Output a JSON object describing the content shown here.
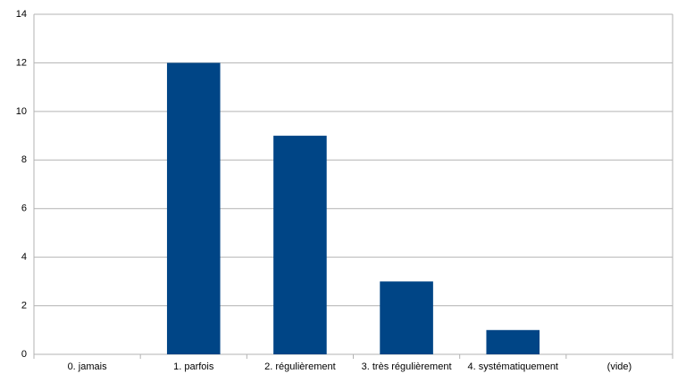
{
  "chart_data": {
    "type": "bar",
    "categories": [
      "0. jamais",
      "1. parfois",
      "2. régulièrement",
      "3. très régulièrement",
      "4. systématiquement",
      "(vide)"
    ],
    "values": [
      0,
      12,
      9,
      3,
      1,
      0
    ],
    "color": "#004586",
    "ylim": [
      0,
      14
    ],
    "yticks": [
      0,
      2,
      4,
      6,
      8,
      10,
      12,
      14
    ],
    "grid": true
  }
}
